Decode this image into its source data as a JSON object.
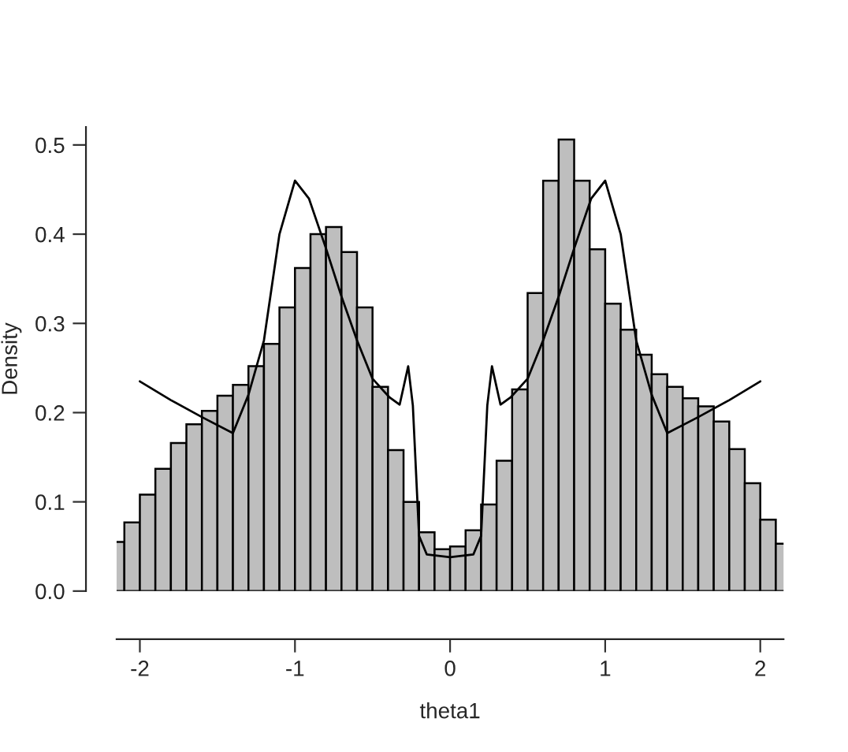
{
  "chart_data": {
    "type": "histogram",
    "xlabel": "theta1",
    "ylabel": "Density",
    "xlim": [
      -2.15,
      2.15
    ],
    "ylim": [
      0,
      0.52
    ],
    "xticks": [
      -2,
      -1,
      0,
      1,
      2
    ],
    "yticks": [
      {
        "value": 0,
        "label": "0.0"
      },
      0.1,
      0.2,
      0.3,
      0.4,
      0.5
    ],
    "grid": false,
    "legend": false,
    "series": [
      {
        "color": "#bebebe",
        "bins": [
          -2.2,
          -2.1,
          -2.0,
          -1.9,
          -1.8,
          -1.7,
          -1.6,
          -1.5,
          -1.4,
          -1.3,
          -1.2,
          -1.1,
          -1.0,
          -0.9,
          -0.8,
          -0.7,
          -0.6,
          -0.5,
          -0.4,
          -0.3,
          -0.2,
          -0.1,
          0.0,
          0.1,
          0.2,
          0.3,
          0.4,
          0.5,
          0.6,
          0.7,
          0.8,
          0.9,
          1.0,
          1.1,
          1.2,
          1.3,
          1.4,
          1.5,
          1.6,
          1.7,
          1.8,
          1.9,
          2.0,
          2.1,
          2.2
        ],
        "values": [
          0.055,
          0.077,
          0.108,
          0.137,
          0.166,
          0.187,
          0.202,
          0.219,
          0.231,
          0.252,
          0.277,
          0.318,
          0.362,
          0.4,
          0.408,
          0.38,
          0.318,
          0.229,
          0.158,
          0.1,
          0.066,
          0.047,
          0.05,
          0.068,
          0.097,
          0.146,
          0.226,
          0.334,
          0.46,
          0.506,
          0.46,
          0.383,
          0.322,
          0.293,
          0.265,
          0.243,
          0.229,
          0.216,
          0.207,
          0.19,
          0.159,
          0.121,
          0.08,
          0.053
        ]
      },
      {
        "type": "line",
        "color": "#000000",
        "line_style": "solid",
        "x": [
          -2.0,
          -1.8,
          -1.6,
          -1.4,
          -1.3,
          -1.2,
          -1.1,
          -1.0,
          -0.91,
          -0.8,
          -0.7,
          -0.6,
          -0.5,
          -0.39,
          -0.325,
          -0.27,
          -0.24,
          -0.2,
          -0.15,
          0.0,
          0.15,
          0.2,
          0.24,
          0.27,
          0.325,
          0.39,
          0.5,
          0.6,
          0.7,
          0.8,
          0.91,
          1.0,
          1.1,
          1.2,
          1.3,
          1.4,
          1.6,
          1.8,
          2.0
        ],
        "values": [
          0.235,
          0.214,
          0.195,
          0.177,
          0.22,
          0.281,
          0.4,
          0.46,
          0.44,
          0.384,
          0.33,
          0.281,
          0.238,
          0.217,
          0.209,
          0.252,
          0.208,
          0.062,
          0.041,
          0.038,
          0.041,
          0.062,
          0.208,
          0.252,
          0.209,
          0.217,
          0.238,
          0.281,
          0.33,
          0.384,
          0.44,
          0.46,
          0.4,
          0.281,
          0.22,
          0.177,
          0.195,
          0.214,
          0.235
        ]
      }
    ]
  }
}
